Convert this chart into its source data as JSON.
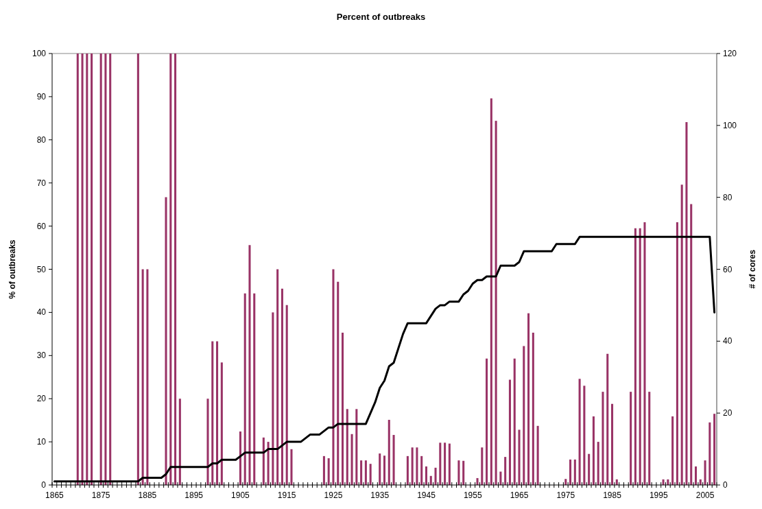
{
  "chart_data": {
    "type": "bar",
    "title": "Percent of outbreaks",
    "ylabel": "% of outbreaks",
    "y2label": "# of cores",
    "categories": [
      "1865",
      null,
      null,
      null,
      null,
      null,
      null,
      null,
      null,
      null,
      "1875",
      null,
      null,
      null,
      null,
      null,
      null,
      null,
      null,
      null,
      "1885",
      null,
      null,
      null,
      null,
      null,
      null,
      null,
      null,
      null,
      "1895",
      null,
      null,
      null,
      null,
      null,
      null,
      null,
      null,
      null,
      "1905",
      null,
      null,
      null,
      null,
      null,
      null,
      null,
      null,
      null,
      "1915",
      null,
      null,
      null,
      null,
      null,
      null,
      null,
      null,
      null,
      "1925",
      null,
      null,
      null,
      null,
      null,
      null,
      null,
      null,
      null,
      "1935",
      null,
      null,
      null,
      null,
      null,
      null,
      null,
      null,
      null,
      "1945",
      null,
      null,
      null,
      null,
      null,
      null,
      null,
      null,
      null,
      "1955",
      null,
      null,
      null,
      null,
      null,
      null,
      null,
      null,
      null,
      "1965",
      null,
      null,
      null,
      null,
      null,
      null,
      null,
      null,
      null,
      "1975",
      null,
      null,
      null,
      null,
      null,
      null,
      null,
      null,
      null,
      "1985",
      null,
      null,
      null,
      null,
      null,
      null,
      null,
      null,
      null,
      "1995",
      null,
      null,
      null,
      null,
      null,
      null,
      null,
      null,
      null,
      "2005",
      null,
      null
    ],
    "ylim": [
      0,
      100
    ],
    "yticks": [
      0,
      10,
      20,
      30,
      40,
      50,
      60,
      70,
      80,
      90,
      100
    ],
    "y2lim": [
      0,
      120
    ],
    "y2ticks": [
      0,
      20,
      40,
      60,
      80,
      100,
      120
    ],
    "series": [
      {
        "color": "#993366",
        "values": [
          0,
          0,
          0,
          0,
          0,
          100,
          100,
          100,
          100,
          0,
          100,
          100,
          100,
          0,
          0,
          0,
          0,
          0,
          100,
          50,
          50,
          0,
          0,
          0,
          66.7,
          100,
          100,
          20,
          0,
          0,
          0,
          0,
          0,
          20,
          33.3,
          33.3,
          28.4,
          0,
          0,
          0,
          12.4,
          44.4,
          55.6,
          44.4,
          0,
          11,
          10,
          40,
          50,
          45.5,
          41.7,
          8.3,
          0,
          0,
          0,
          0,
          0,
          0,
          6.7,
          6.2,
          50,
          47.1,
          35.3,
          17.6,
          11.8,
          17.6,
          5.7,
          5.7,
          4.9,
          0,
          7.3,
          6.8,
          15.1,
          11.6,
          0,
          0,
          6.7,
          8.7,
          8.7,
          6.7,
          4.3,
          2.1,
          4,
          9.8,
          9.8,
          9.6,
          0,
          5.7,
          5.6,
          0,
          0,
          1.6,
          8.7,
          29.3,
          89.6,
          84.4,
          3.1,
          6.5,
          24.4,
          29.3,
          12.8,
          32.2,
          39.8,
          35.3,
          13.7,
          0,
          0,
          0,
          0,
          0,
          1.4,
          5.9,
          5.9,
          24.6,
          23,
          7.2,
          15.9,
          10,
          21.6,
          30.4,
          18.8,
          1.3,
          0,
          0,
          21.6,
          59.5,
          59.5,
          60.9,
          21.6,
          0,
          0,
          1.3,
          1.3,
          15.9,
          60.9,
          69.6,
          84.1,
          65.1,
          4.3,
          1.3,
          5.7,
          14.5,
          16.5
        ]
      },
      {
        "type": "line",
        "axis": "y2",
        "color": "#000000",
        "values": [
          1,
          1,
          1,
          1,
          1,
          1,
          1,
          1,
          1,
          1,
          1,
          1,
          1,
          1,
          1,
          1,
          1,
          1,
          1,
          2,
          2,
          2,
          2,
          2,
          3,
          5,
          5,
          5,
          5,
          5,
          5,
          5,
          5,
          5,
          6,
          6,
          7,
          7,
          7,
          7,
          8,
          9,
          9,
          9,
          9,
          9,
          10,
          10,
          10,
          11,
          12,
          12,
          12,
          12,
          13,
          14,
          14,
          14,
          15,
          16,
          16,
          17,
          17,
          17,
          17,
          17,
          17,
          17,
          20,
          23,
          27,
          29,
          33,
          34,
          38,
          42,
          45,
          45,
          45,
          45,
          45,
          47,
          49,
          50,
          50,
          51,
          51,
          51,
          53,
          54,
          56,
          57,
          57,
          58,
          58,
          58,
          61,
          61,
          61,
          61,
          62,
          65,
          65,
          65,
          65,
          65,
          65,
          65,
          67,
          67,
          67,
          67,
          67,
          69,
          69,
          69,
          69,
          69,
          69,
          69,
          69,
          69,
          69,
          69,
          69,
          69,
          69,
          69,
          69,
          69,
          69,
          69,
          69,
          69,
          69,
          69,
          69,
          69,
          69,
          69,
          69,
          69,
          48
        ]
      }
    ]
  }
}
